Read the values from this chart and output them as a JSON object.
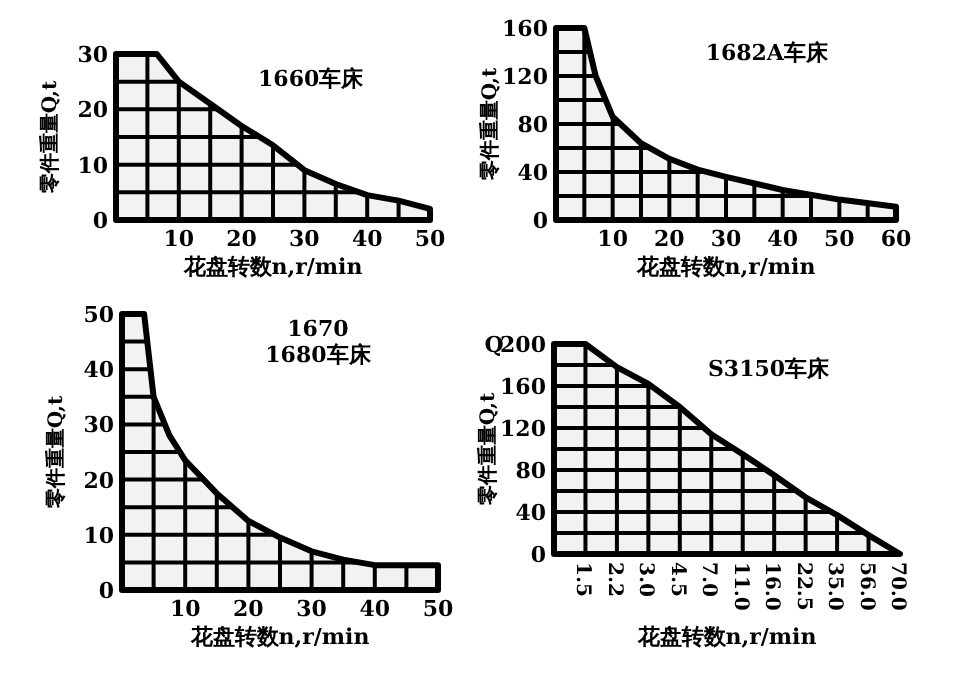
{
  "chart_data": [
    {
      "type": "area",
      "title": "1660车床",
      "xlabel": "花盘转数n,r/min",
      "ylabel": "零件重量Q,t",
      "color": "#f2f2f2",
      "grid": true,
      "x": [
        0,
        6.5,
        10,
        15,
        20,
        25,
        30,
        35,
        40,
        45,
        50
      ],
      "values": [
        30,
        30,
        25,
        21,
        17,
        13.5,
        9,
        6.5,
        4.5,
        3.5,
        2
      ],
      "xlim": [
        0,
        50
      ],
      "ylim": [
        0,
        30
      ],
      "xticks": [
        10,
        20,
        30,
        40,
        50
      ],
      "yticks": [
        0,
        10,
        20,
        30
      ]
    },
    {
      "type": "area",
      "title": "1682A车床",
      "xlabel": "花盘转数n,r/min",
      "ylabel": "零件重量Q,t",
      "color": "#f2f2f2",
      "grid": true,
      "x": [
        0,
        5,
        7,
        10,
        15,
        20,
        25,
        30,
        40,
        50,
        60
      ],
      "values": [
        160,
        160,
        120,
        86,
        64,
        51,
        42,
        36,
        25,
        17,
        11
      ],
      "xlim": [
        0,
        60
      ],
      "ylim": [
        0,
        160
      ],
      "xticks": [
        10,
        20,
        30,
        40,
        50,
        60
      ],
      "yticks": [
        0,
        40,
        80,
        120,
        160
      ]
    },
    {
      "type": "area",
      "title": "1670\n1680车床",
      "xlabel": "花盘转数n,r/min",
      "ylabel": "零件重量Q,t",
      "color": "#f2f2f2",
      "grid": true,
      "x": [
        0,
        3.5,
        5,
        7.5,
        10,
        15,
        20,
        25,
        30,
        35,
        40,
        45,
        50
      ],
      "values": [
        50,
        50,
        35,
        28,
        23.5,
        17.5,
        12.5,
        9.5,
        7,
        5.5,
        4.5,
        4.5,
        4.5
      ],
      "xlim": [
        0,
        50
      ],
      "ylim": [
        0,
        50
      ],
      "xticks": [
        10,
        20,
        30,
        40,
        50
      ],
      "yticks": [
        0,
        10,
        20,
        30,
        40,
        50
      ]
    },
    {
      "type": "area",
      "title": "S3150车床",
      "xlabel": "花盘转数n,r/min",
      "ylabel": "零件重量Q,t",
      "color": "#f2f2f2",
      "grid": true,
      "annotations": [
        "Q"
      ],
      "categories": [
        null,
        "1.5",
        "2.2",
        "3.0",
        "4.5",
        "7.0",
        "11.0",
        "16.0",
        "22.5",
        "35.0",
        "56.0",
        "70.0"
      ],
      "values": [
        200,
        200,
        178,
        162,
        140,
        114,
        95,
        75,
        54,
        37,
        18,
        0
      ],
      "ylim": [
        0,
        200
      ],
      "yticks": [
        0,
        40,
        80,
        120,
        160,
        200
      ]
    }
  ]
}
